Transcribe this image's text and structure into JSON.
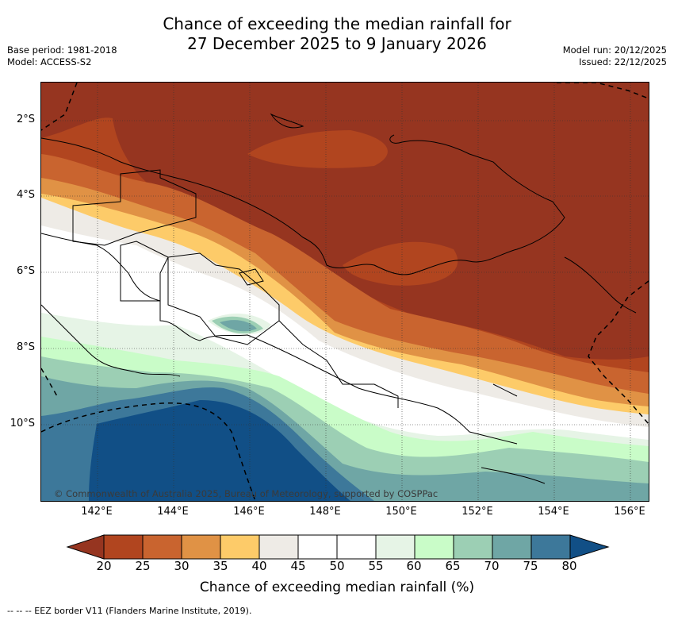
{
  "header": {
    "title_line1": "Chance of exceeding the median rainfall for",
    "title_line2": "27 December 2025 to 9 January 2026",
    "base_period": "Base period: 1981-2018",
    "model": "Model: ACCESS-S2",
    "model_run": "Model run: 20/12/2025",
    "issued": "Issued: 22/12/2025"
  },
  "map": {
    "latitude_labels": [
      "2°S",
      "4°S",
      "6°S",
      "8°S",
      "10°S"
    ],
    "longitude_labels": [
      "142°E",
      "144°E",
      "146°E",
      "148°E",
      "150°E",
      "152°E",
      "154°E",
      "156°E"
    ],
    "copyright": "© Commonwealth of Australia 2025, Bureau of Meteorology, supported by COSPPac"
  },
  "colorbar": {
    "label": "Chance of exceeding median rainfall (%)",
    "ticks": [
      "20",
      "25",
      "30",
      "35",
      "40",
      "45",
      "50",
      "55",
      "60",
      "65",
      "70",
      "75",
      "80"
    ],
    "colors": [
      "#963520",
      "#b1451f",
      "#c9642f",
      "#e09245",
      "#fdcb69",
      "#eeebe6",
      "#ffffff",
      "#ffffff",
      "#e6f4e6",
      "#c9fcc8",
      "#9ccfb4",
      "#6fa6a5",
      "#3d789a",
      "#114f86"
    ]
  },
  "legend": {
    "eez": "-- -- -- EEZ border V11 (Flanders Marine Institute, 2019)."
  }
}
